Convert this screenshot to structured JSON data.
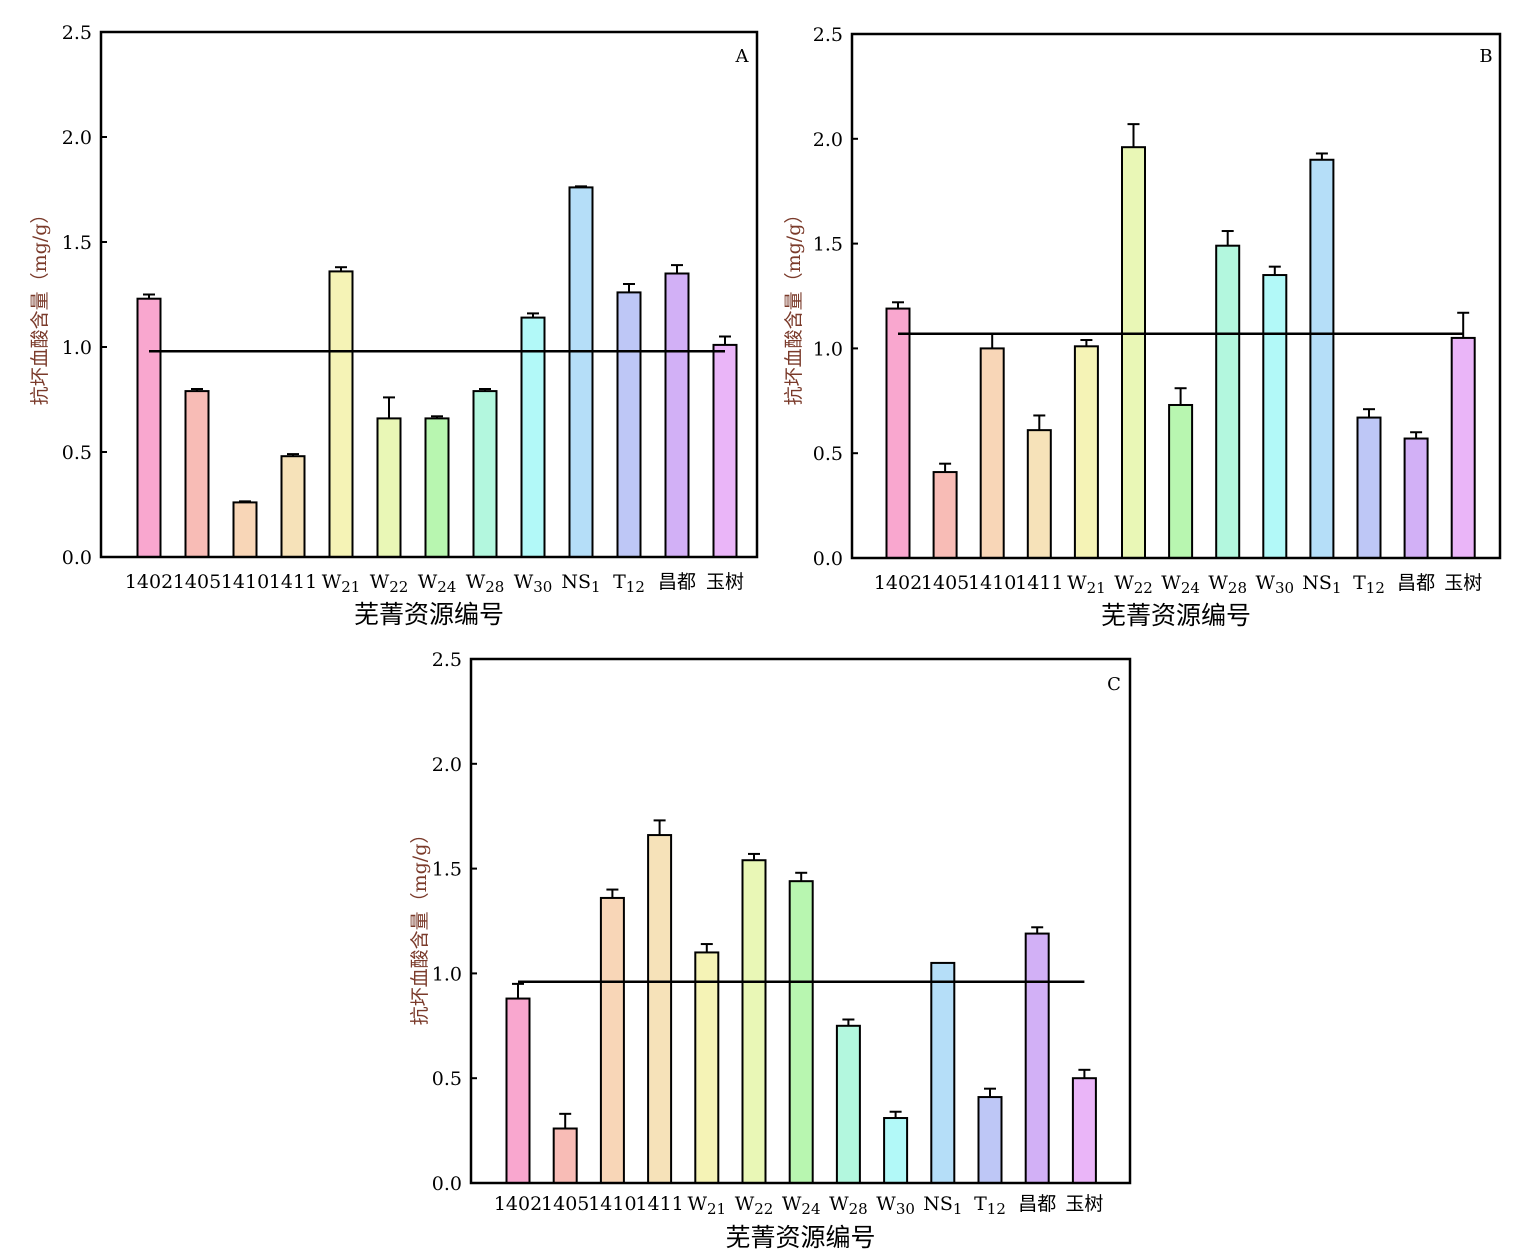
{
  "chart_data": [
    {
      "type": "bar",
      "panel_label": "A",
      "xlabel": "芜菁资源编号",
      "ylabel": "抗坏血酸含量（mg/g）",
      "ylim": [
        0,
        2.5
      ],
      "yticks": [
        "0.0",
        "0.5",
        "1.0",
        "1.5",
        "2.0",
        "2.5"
      ],
      "categories": [
        {
          "base": "1402",
          "sub": ""
        },
        {
          "base": "1405",
          "sub": ""
        },
        {
          "base": "1410",
          "sub": ""
        },
        {
          "base": "1411",
          "sub": ""
        },
        {
          "base": "W",
          "sub": "21"
        },
        {
          "base": "W",
          "sub": "22"
        },
        {
          "base": "W",
          "sub": "24"
        },
        {
          "base": "W",
          "sub": "28"
        },
        {
          "base": "W",
          "sub": "30"
        },
        {
          "base": "NS",
          "sub": "1"
        },
        {
          "base": "T",
          "sub": "12"
        },
        {
          "base": "昌都",
          "sub": ""
        },
        {
          "base": "玉树",
          "sub": ""
        }
      ],
      "values": [
        1.23,
        0.79,
        0.26,
        0.48,
        1.36,
        0.66,
        0.66,
        0.79,
        1.14,
        1.76,
        1.26,
        1.35,
        1.01
      ],
      "errors": [
        0.02,
        0.01,
        0.005,
        0.01,
        0.02,
        0.1,
        0.01,
        0.01,
        0.02,
        0.005,
        0.04,
        0.04,
        0.04
      ],
      "mean_line": 0.98,
      "grid": false
    },
    {
      "type": "bar",
      "panel_label": "B",
      "xlabel": "芜菁资源编号",
      "ylabel": "抗坏血酸含量（mg/g）",
      "ylim": [
        0,
        2.5
      ],
      "yticks": [
        "0.0",
        "0.5",
        "1.0",
        "1.5",
        "2.0",
        "2.5"
      ],
      "categories": [
        {
          "base": "1402",
          "sub": ""
        },
        {
          "base": "1405",
          "sub": ""
        },
        {
          "base": "1410",
          "sub": ""
        },
        {
          "base": "1411",
          "sub": ""
        },
        {
          "base": "W",
          "sub": "21"
        },
        {
          "base": "W",
          "sub": "22"
        },
        {
          "base": "W",
          "sub": "24"
        },
        {
          "base": "W",
          "sub": "28"
        },
        {
          "base": "W",
          "sub": "30"
        },
        {
          "base": "NS",
          "sub": "1"
        },
        {
          "base": "T",
          "sub": "12"
        },
        {
          "base": "昌都",
          "sub": ""
        },
        {
          "base": "玉树",
          "sub": ""
        }
      ],
      "values": [
        1.19,
        0.41,
        1.0,
        0.61,
        1.01,
        1.96,
        0.73,
        1.49,
        1.35,
        1.9,
        0.67,
        0.57,
        1.05
      ],
      "errors": [
        0.03,
        0.04,
        0.07,
        0.07,
        0.03,
        0.11,
        0.08,
        0.07,
        0.04,
        0.03,
        0.04,
        0.03,
        0.12
      ],
      "mean_line": 1.07,
      "grid": false
    },
    {
      "type": "bar",
      "panel_label": "C",
      "xlabel": "芜菁资源编号",
      "ylabel": "抗坏血酸含量（mg/g）",
      "ylim": [
        0,
        2.5
      ],
      "yticks": [
        "0.0",
        "0.5",
        "1.0",
        "1.5",
        "2.0",
        "2.5"
      ],
      "categories": [
        {
          "base": "1402",
          "sub": ""
        },
        {
          "base": "1405",
          "sub": ""
        },
        {
          "base": "1410",
          "sub": ""
        },
        {
          "base": "1411",
          "sub": ""
        },
        {
          "base": "W",
          "sub": "21"
        },
        {
          "base": "W",
          "sub": "22"
        },
        {
          "base": "W",
          "sub": "24"
        },
        {
          "base": "W",
          "sub": "28"
        },
        {
          "base": "W",
          "sub": "30"
        },
        {
          "base": "NS",
          "sub": "1"
        },
        {
          "base": "T",
          "sub": "12"
        },
        {
          "base": "昌都",
          "sub": ""
        },
        {
          "base": "玉树",
          "sub": ""
        }
      ],
      "values": [
        0.88,
        0.26,
        1.36,
        1.66,
        1.1,
        1.54,
        1.44,
        0.75,
        0.31,
        1.05,
        0.41,
        1.19,
        0.5
      ],
      "errors": [
        0.07,
        0.07,
        0.04,
        0.07,
        0.04,
        0.03,
        0.04,
        0.03,
        0.03,
        0.0,
        0.04,
        0.03,
        0.04
      ],
      "mean_line": 0.96,
      "grid": false
    }
  ],
  "colors": {
    "bars": [
      "#f9a7cf",
      "#f8bcb6",
      "#f8d6b7",
      "#f6e2b9",
      "#f5f3b6",
      "#e9f7b6",
      "#b8f6b0",
      "#b3f7de",
      "#b2f9f8",
      "#b5def8",
      "#bec7f6",
      "#d2b0f6",
      "#eab5f8"
    ],
    "stroke": "#000000",
    "ylabel": "#7a3a2a"
  }
}
